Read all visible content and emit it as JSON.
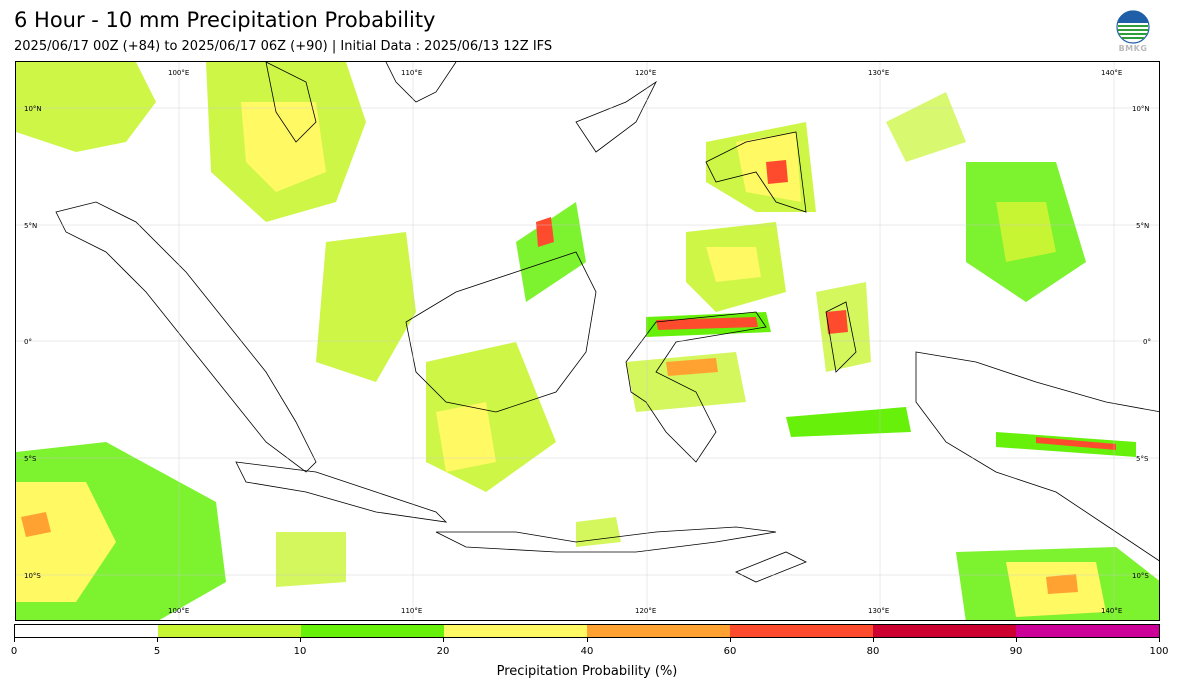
{
  "title": "6 Hour - 10 mm Precipitation Probability",
  "subtitle": "2025/06/17 00Z (+84) to 2025/06/17 06Z (+90) | Initial Data : 2025/06/13 12Z IFS",
  "logo_text": "BMKG",
  "map": {
    "lon_range": [
      95,
      144
    ],
    "lat_range": [
      -12,
      12
    ],
    "lon_labels": [
      "100°E",
      "110°E",
      "120°E",
      "130°E",
      "140°E"
    ],
    "lon_values": [
      100,
      110,
      120,
      130,
      140
    ],
    "lat_labels": [
      "10°N",
      "5°N",
      "0°",
      "5°S",
      "10°S"
    ],
    "lat_values": [
      10,
      5,
      0,
      -5,
      -10
    ]
  },
  "colorbar": {
    "label": "Precipitation Probability (%)",
    "colors": [
      "#ffffff",
      "#c8f533",
      "#66f00a",
      "#fff964",
      "#ffa232",
      "#fe4b2e",
      "#cc0031",
      "#cc0099"
    ],
    "ticks": [
      "0",
      "5",
      "10",
      "20",
      "40",
      "60",
      "80",
      "90",
      "100"
    ]
  }
}
